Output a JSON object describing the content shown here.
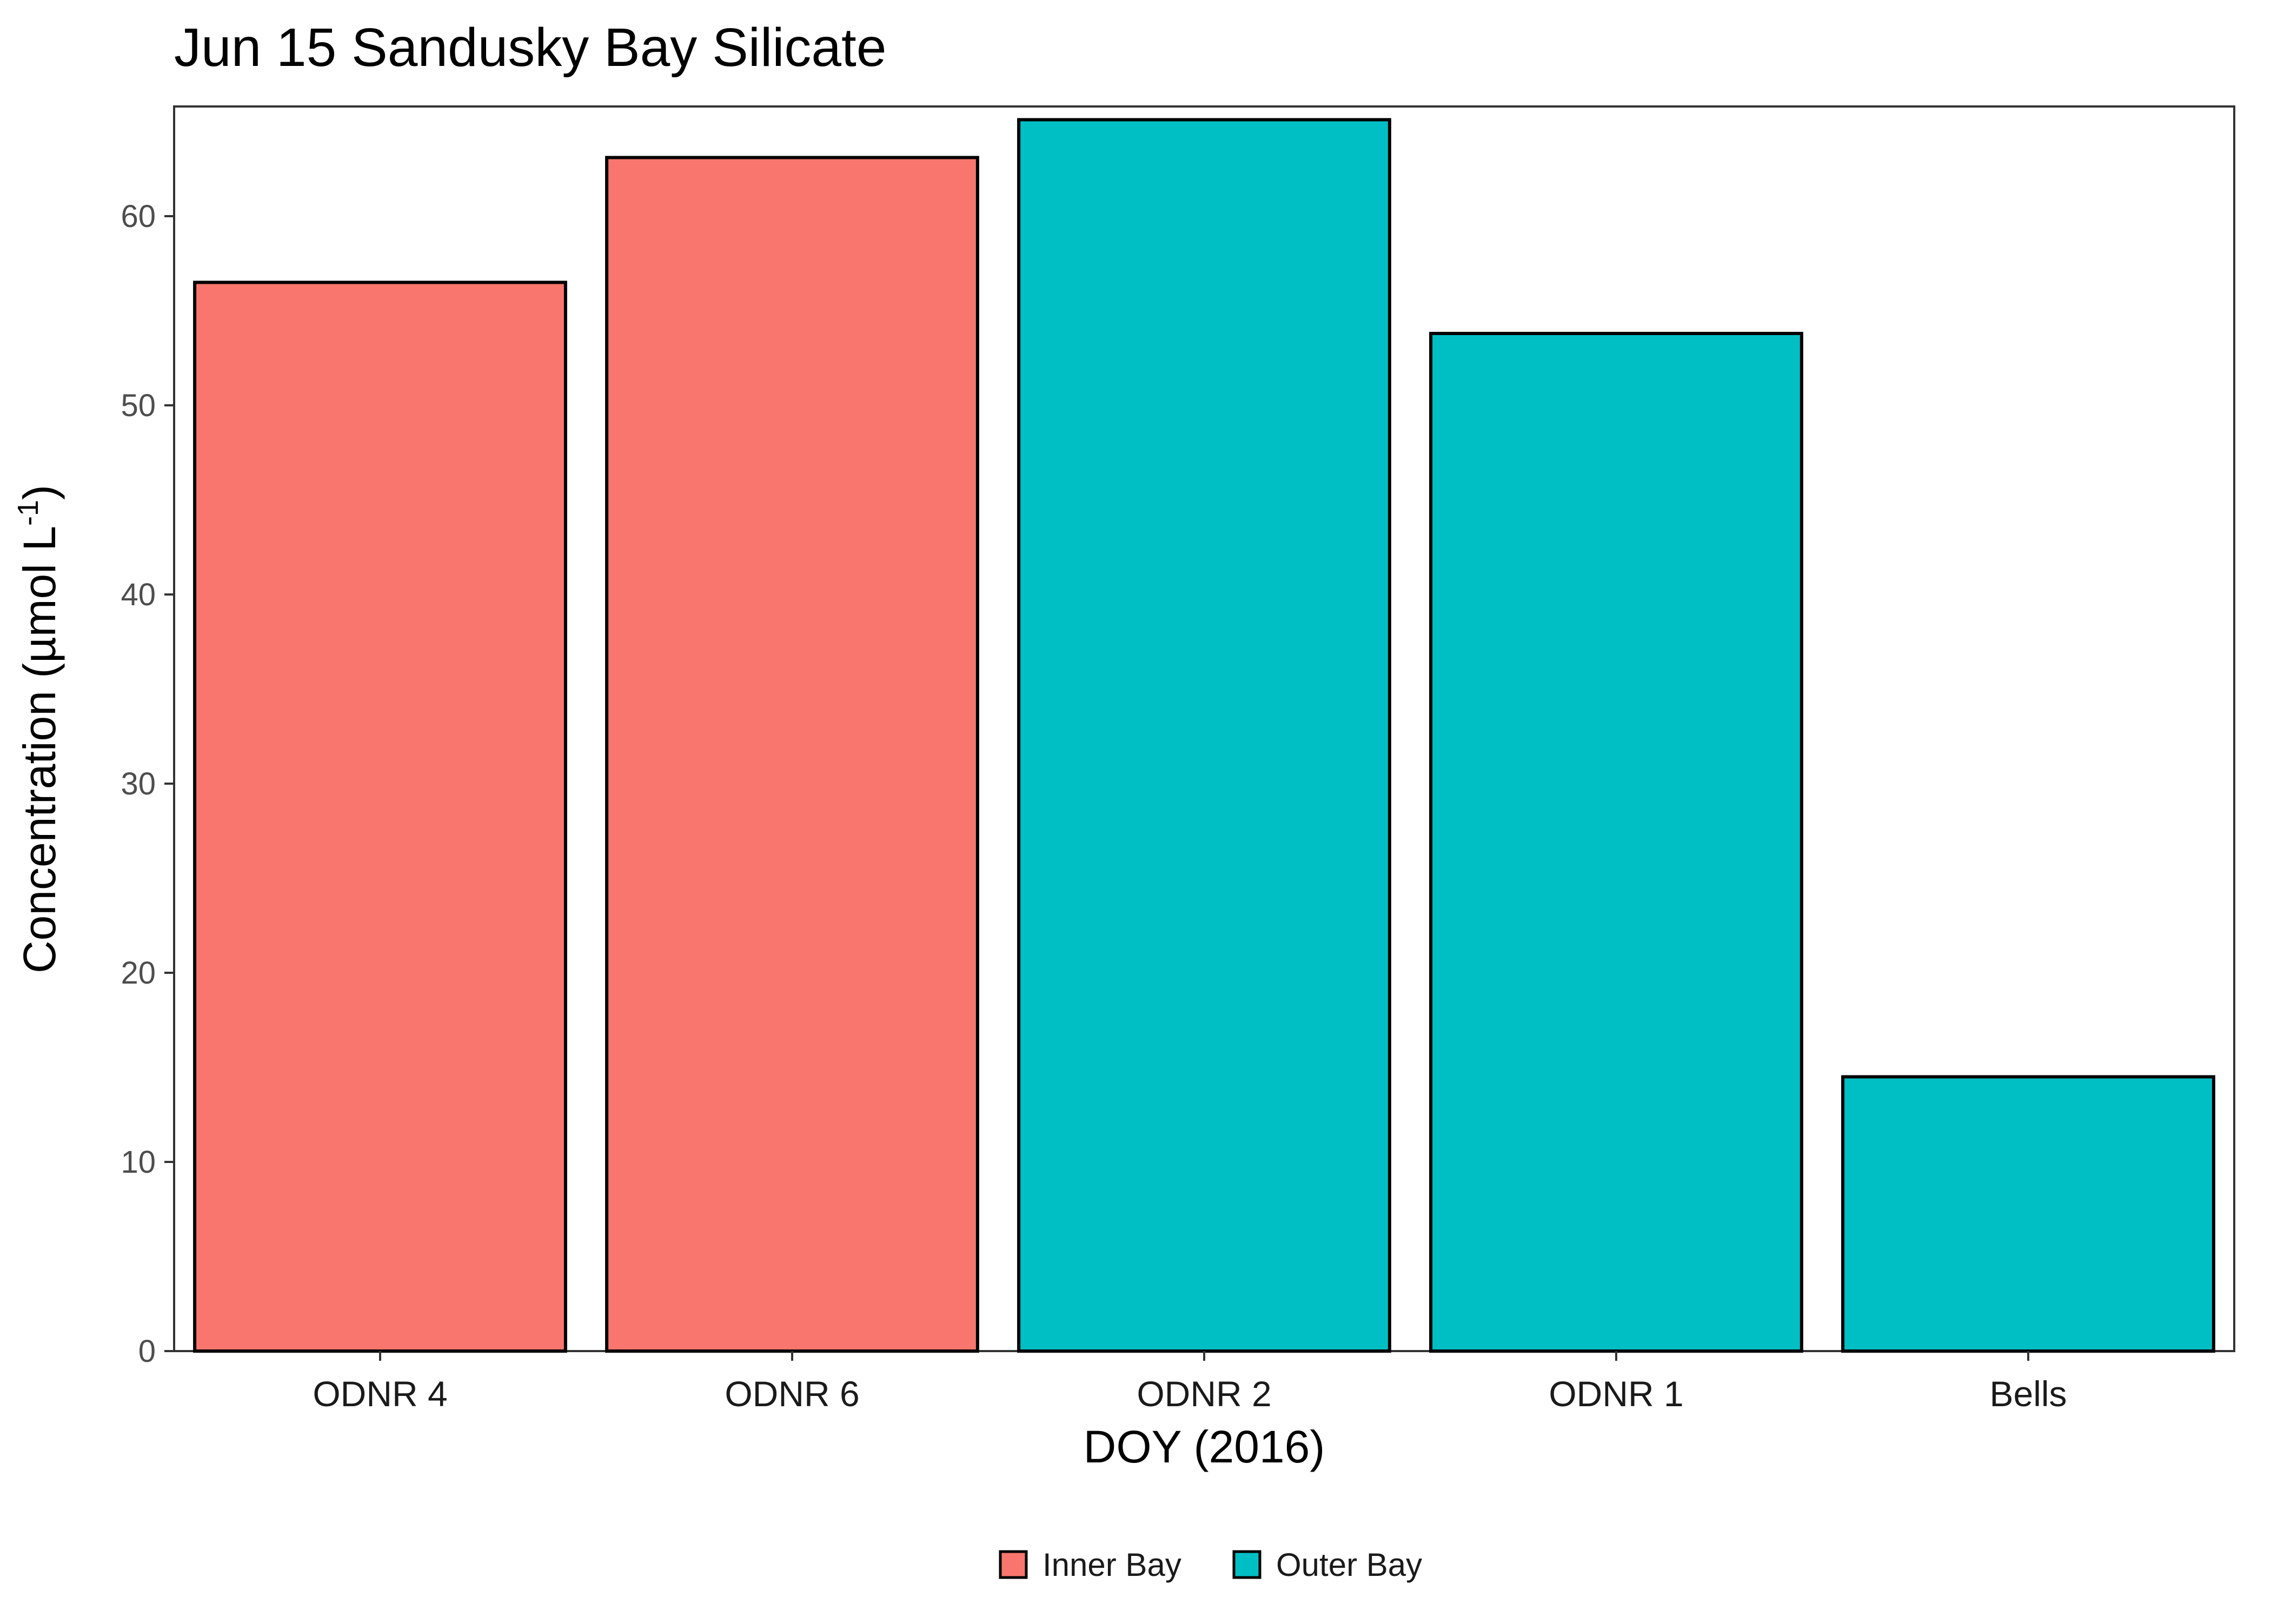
{
  "chart_data": {
    "type": "bar",
    "title": "Jun 15 Sandusky Bay Silicate",
    "xlabel": "DOY (2016)",
    "ylabel_prefix": "Concentration (µmol L",
    "ylabel_superscript": "-1",
    "ylabel_suffix": ")",
    "categories": [
      "ODNR 4",
      "ODNR 6",
      "ODNR 2",
      "ODNR 1",
      "Bells"
    ],
    "values": [
      56.5,
      63.1,
      65.1,
      53.8,
      14.5
    ],
    "groups": [
      "Inner Bay",
      "Inner Bay",
      "Outer Bay",
      "Outer Bay",
      "Outer Bay"
    ],
    "ylim": [
      0,
      65.8
    ],
    "yticks": [
      0,
      10,
      20,
      30,
      40,
      50,
      60
    ],
    "grid": false,
    "legend_position": "bottom",
    "legend": [
      {
        "name": "Inner Bay",
        "color": "#F8766D"
      },
      {
        "name": "Outer Bay",
        "color": "#00BFC4"
      }
    ]
  }
}
